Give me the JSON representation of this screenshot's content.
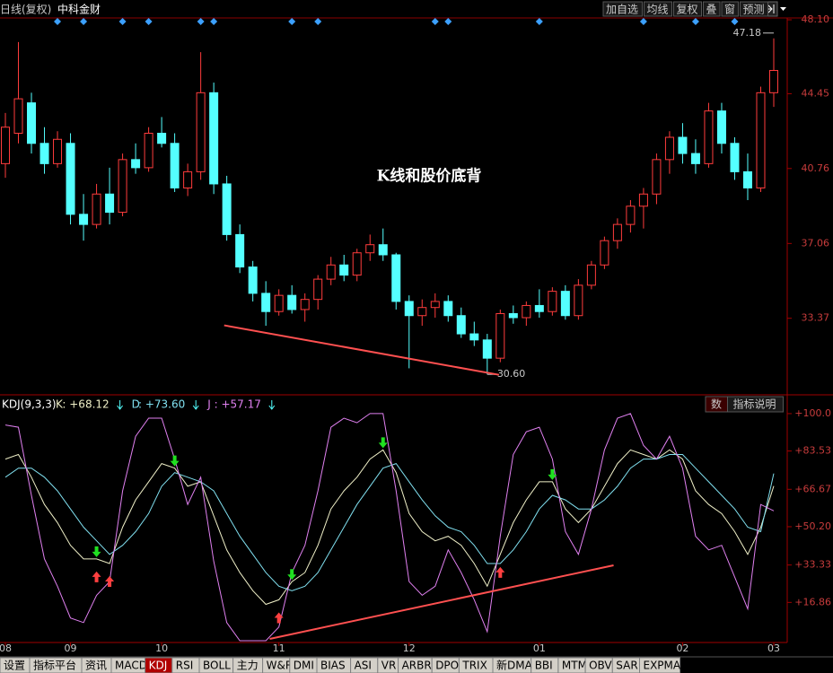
{
  "toolbar": {
    "period": "日线(复权)",
    "stock": "中科金财",
    "buttons": [
      "加自选",
      "均线",
      "复权",
      "叠",
      "窗",
      "预测"
    ]
  },
  "chart_data": [
    {
      "type": "candlestick",
      "title": "K线和股价底背",
      "open": [
        41.0,
        42.5,
        44.0,
        42.0,
        41.0,
        42.0,
        38.5,
        38.0,
        39.5,
        38.6,
        41.2,
        40.8,
        42.5,
        42.0,
        39.8,
        40.6,
        44.5,
        40.0,
        37.5,
        35.9,
        34.6,
        33.7,
        34.5,
        33.8,
        34.3,
        35.3,
        36.0,
        35.5,
        36.6,
        37.0,
        36.5,
        34.2,
        33.5,
        33.9,
        34.2,
        33.5,
        32.6,
        32.3,
        31.4,
        33.6,
        33.4,
        34.0,
        33.7,
        34.7,
        33.5,
        35.0,
        36.0,
        37.2,
        38.0,
        38.9,
        39.5,
        41.2,
        42.3,
        41.5,
        41.0,
        43.6,
        42.0,
        40.6,
        39.8,
        44.5
      ],
      "high": [
        43.5,
        47.0,
        44.5,
        42.8,
        42.6,
        42.5,
        39.5,
        40.0,
        40.8,
        41.5,
        42.0,
        42.8,
        43.3,
        42.5,
        41.0,
        46.5,
        45.0,
        40.4,
        38.0,
        36.2,
        35.2,
        34.8,
        35.0,
        34.6,
        35.5,
        36.4,
        36.5,
        36.8,
        37.5,
        37.8,
        36.6,
        34.5,
        34.3,
        34.6,
        34.5,
        33.9,
        33.2,
        32.6,
        33.8,
        34.0,
        34.2,
        34.8,
        34.9,
        35.0,
        35.3,
        36.2,
        37.4,
        38.3,
        39.2,
        39.8,
        41.5,
        42.6,
        43.0,
        42.2,
        44.0,
        44.0,
        42.3,
        41.5,
        44.8,
        47.18
      ],
      "low": [
        40.3,
        42.0,
        41.5,
        40.5,
        40.8,
        38.0,
        37.2,
        37.8,
        38.0,
        38.4,
        40.5,
        40.6,
        41.8,
        39.6,
        39.4,
        40.2,
        39.5,
        37.2,
        35.6,
        34.2,
        33.0,
        33.5,
        33.6,
        33.2,
        33.8,
        35.0,
        35.2,
        35.2,
        36.2,
        36.2,
        33.8,
        30.9,
        33.0,
        33.4,
        33.2,
        32.4,
        32.0,
        30.6,
        31.2,
        33.1,
        33.0,
        33.4,
        33.5,
        33.3,
        33.3,
        34.8,
        35.8,
        36.8,
        37.6,
        37.8,
        39.0,
        40.5,
        41.0,
        40.5,
        40.8,
        41.5,
        40.2,
        39.2,
        39.6,
        43.8
      ],
      "close": [
        42.8,
        44.2,
        42.0,
        41.0,
        42.2,
        38.5,
        38.0,
        39.5,
        38.6,
        41.2,
        40.8,
        42.5,
        42.0,
        39.8,
        40.6,
        44.5,
        40.0,
        37.5,
        35.9,
        34.6,
        33.7,
        34.5,
        33.8,
        34.3,
        35.3,
        36.0,
        35.5,
        36.6,
        37.0,
        36.5,
        34.2,
        33.5,
        33.9,
        34.2,
        33.5,
        32.6,
        32.3,
        31.4,
        33.6,
        33.4,
        34.0,
        33.7,
        34.7,
        33.5,
        35.0,
        36.0,
        37.2,
        38.0,
        38.9,
        39.5,
        41.2,
        42.3,
        41.5,
        41.0,
        43.6,
        42.0,
        40.6,
        39.8,
        44.5,
        45.6
      ],
      "up_color": "#ff3c3c",
      "down_color": "#54ffff",
      "ylim": [
        29.68,
        48.19
      ],
      "yticks": [
        {
          "value": 48.1,
          "label": "48.10"
        },
        44.45,
        40.76,
        37.06,
        33.37
      ],
      "signals": [
        4,
        6,
        9,
        11,
        15,
        16,
        22,
        24,
        33,
        34,
        41,
        49,
        53,
        56
      ],
      "signal_color": "#3ca0ff",
      "max_marker": {
        "index": 59,
        "value": 47.18
      },
      "min_marker": {
        "index": 37,
        "value": 30.6,
        "label": "30.60"
      },
      "trendline": {
        "x": [
          16.8,
          37.9
        ],
        "values": [
          33.02,
          30.58
        ],
        "color": "#ff5050"
      }
    },
    {
      "type": "line",
      "title": "KDJ(9,3,3)",
      "series": [
        {
          "name": "K",
          "readout": {
            "value": 68.12,
            "label": ": +68.12"
          },
          "color": "#f0f0c8",
          "values": [
            80,
            82,
            72,
            60,
            52,
            42,
            36,
            36,
            34,
            50,
            62,
            70,
            78,
            76,
            68,
            70,
            55,
            40,
            30,
            22,
            16,
            18,
            26,
            30,
            42,
            58,
            66,
            72,
            80,
            84,
            74,
            56,
            48,
            44,
            46,
            42,
            34,
            24,
            38,
            52,
            62,
            70,
            70,
            58,
            52,
            58,
            68,
            78,
            84,
            82,
            80,
            84,
            80,
            66,
            60,
            56,
            48,
            38,
            50,
            68.12
          ]
        },
        {
          "name": "D",
          "readout": {
            "value": 73.6,
            "label": ": +73.60"
          },
          "color": "#80e0f0",
          "values": [
            72,
            76,
            76,
            72,
            66,
            58,
            50,
            44,
            38,
            42,
            48,
            56,
            68,
            74,
            72,
            70,
            66,
            56,
            46,
            38,
            30,
            24,
            22,
            24,
            30,
            40,
            50,
            60,
            68,
            76,
            78,
            70,
            62,
            55,
            50,
            48,
            42,
            34,
            34,
            40,
            48,
            58,
            64,
            62,
            58,
            58,
            62,
            68,
            76,
            80,
            80,
            82,
            82,
            76,
            70,
            64,
            58,
            50,
            48,
            73.6
          ]
        },
        {
          "name": "J",
          "readout": {
            "value": 57.17,
            "label": ": +57.17"
          },
          "color": "#e080f0",
          "values": [
            95,
            94,
            64,
            36,
            24,
            10,
            8,
            20,
            26,
            66,
            90,
            98,
            98,
            80,
            60,
            72,
            35,
            8,
            0,
            0,
            0,
            6,
            30,
            42,
            66,
            94,
            98,
            96,
            100,
            100,
            66,
            26,
            20,
            24,
            40,
            30,
            18,
            4,
            46,
            82,
            92,
            94,
            80,
            48,
            38,
            58,
            84,
            98,
            100,
            86,
            80,
            90,
            76,
            46,
            40,
            42,
            28,
            14,
            60,
            57.17
          ]
        }
      ],
      "ylim": [
        0,
        106.3
      ],
      "yticks": [
        {
          "value": 100,
          "label": "+100.0"
        },
        {
          "value": 83.53,
          "label": "+83.53"
        },
        {
          "value": 66.67,
          "label": "+66.67"
        },
        {
          "value": 50.2,
          "label": "+50.20"
        },
        {
          "value": 33.33,
          "label": "+33.33"
        },
        {
          "value": 16.86,
          "label": "+16.86"
        }
      ],
      "up_arrows": [
        7,
        8,
        21,
        38
      ],
      "down_arrows": [
        7,
        13,
        22,
        29,
        42
      ],
      "trendline": {
        "x": [
          20.3,
          46.7
        ],
        "values": [
          0.8,
          33.2
        ],
        "color": "#ff5050"
      },
      "panel_buttons": [
        "数",
        "指标说明"
      ],
      "x_labels": [
        {
          "index": 0,
          "label": "08"
        },
        {
          "index": 5,
          "label": "09"
        },
        {
          "index": 12,
          "label": "10"
        },
        {
          "index": 21,
          "label": "11"
        },
        {
          "index": 31,
          "label": "12"
        },
        {
          "index": 41,
          "label": "01"
        },
        {
          "index": 52,
          "label": "02"
        },
        {
          "index": 59,
          "label": "03"
        }
      ]
    }
  ],
  "tabs": {
    "items": [
      "设置",
      "指标平台",
      "资讯",
      "MACD",
      "KDJ",
      "RSI",
      "BOLL",
      "主力",
      "W&R",
      "DMI",
      "BIAS",
      "ASI",
      "VR",
      "ARBR",
      "DPO",
      "TRIX",
      "新DMA",
      "BBI",
      "MTM",
      "OBV",
      "SAR",
      "EXPMA"
    ],
    "active": 4
  }
}
